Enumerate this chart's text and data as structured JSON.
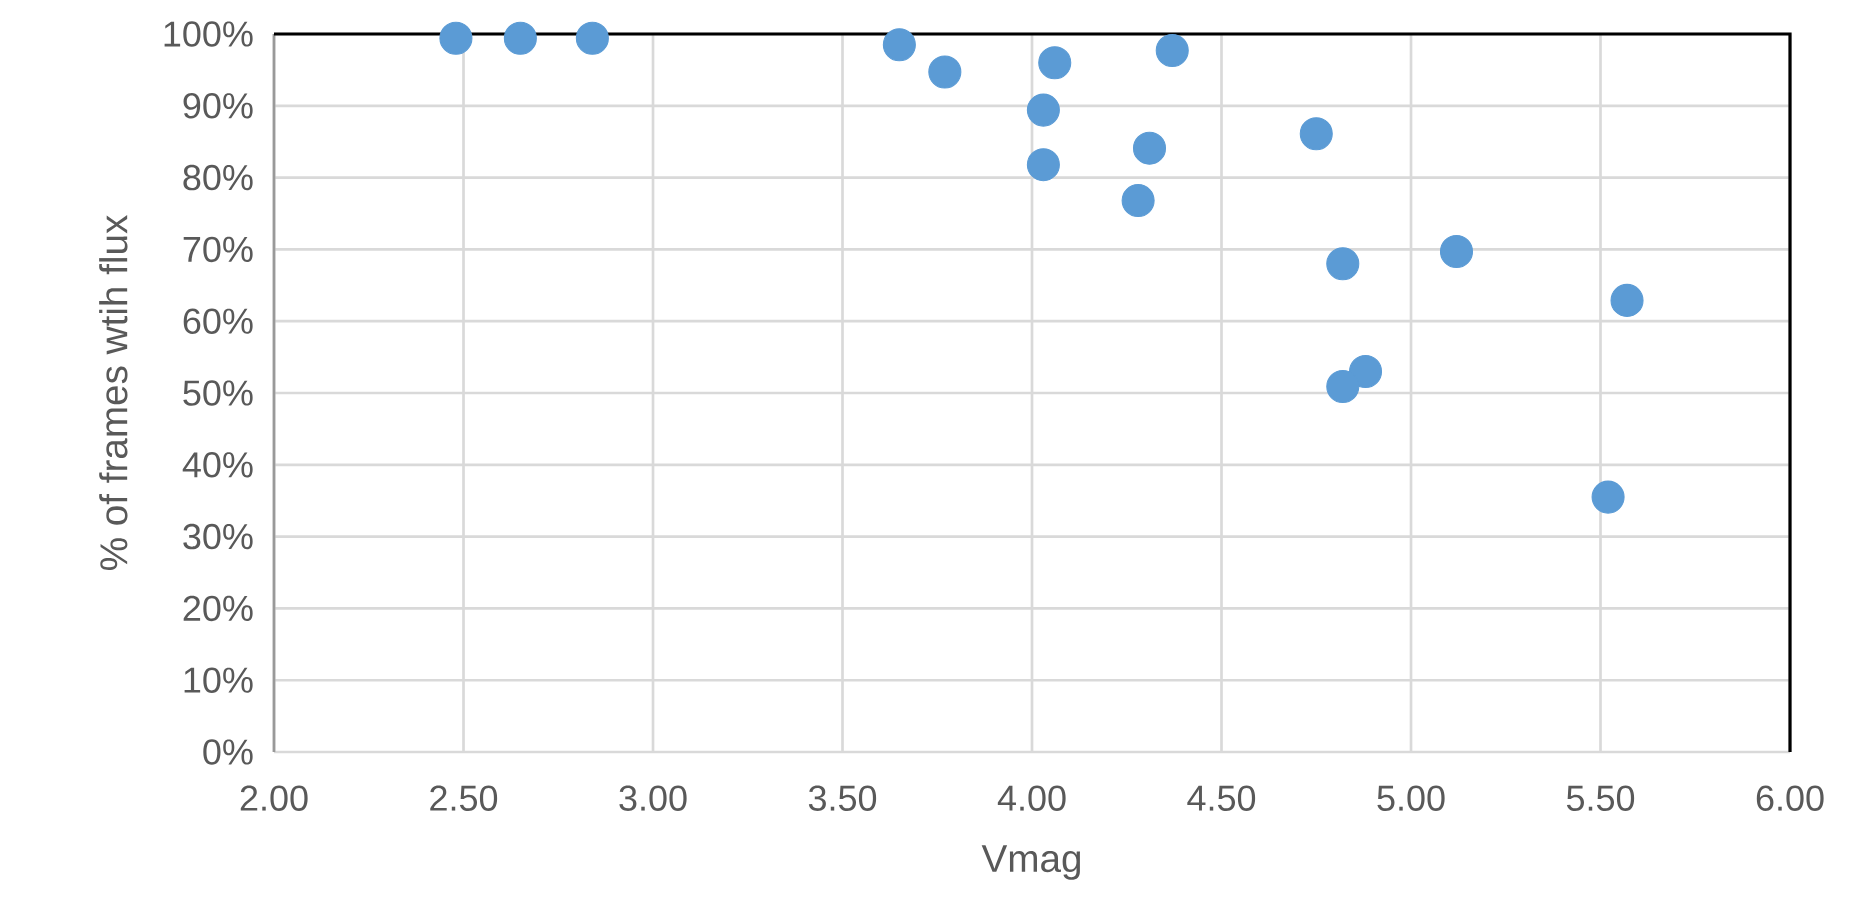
{
  "chart_data": {
    "type": "scatter",
    "xlabel": "Vmag",
    "ylabel": "% of frames wtih flux",
    "x": [
      2.48,
      2.65,
      2.84,
      3.65,
      3.77,
      4.06,
      4.37,
      4.03,
      4.31,
      4.03,
      4.28,
      4.75,
      4.82,
      5.12,
      5.57,
      4.88,
      4.82,
      5.52
    ],
    "values": [
      99.4,
      99.4,
      99.4,
      98.5,
      94.7,
      96.0,
      97.7,
      89.4,
      84.1,
      81.8,
      76.8,
      86.1,
      68.0,
      69.7,
      62.9,
      53.0,
      50.9,
      35.5
    ],
    "color": "#5b9bd5",
    "marker": "circle",
    "grid": true,
    "xlim": [
      2.0,
      6.0
    ],
    "xticks": [
      {
        "value": 2.0,
        "label": "2.00"
      },
      {
        "value": 2.5,
        "label": "2.50"
      },
      {
        "value": 3.0,
        "label": "3.00"
      },
      {
        "value": 3.5,
        "label": "3.50"
      },
      {
        "value": 4.0,
        "label": "4.00"
      },
      {
        "value": 4.5,
        "label": "4.50"
      },
      {
        "value": 5.0,
        "label": "5.00"
      },
      {
        "value": 5.5,
        "label": "5.50"
      },
      {
        "value": 6.0,
        "label": "6.00"
      }
    ],
    "ylim": [
      0,
      100
    ],
    "yticks": [
      {
        "value": 0,
        "label": "0%"
      },
      {
        "value": 10,
        "label": "10%"
      },
      {
        "value": 20,
        "label": "20%"
      },
      {
        "value": 30,
        "label": "30%"
      },
      {
        "value": 40,
        "label": "40%"
      },
      {
        "value": 50,
        "label": "50%"
      },
      {
        "value": 60,
        "label": "60%"
      },
      {
        "value": 70,
        "label": "70%"
      },
      {
        "value": 80,
        "label": "80%"
      },
      {
        "value": 90,
        "label": "90%"
      },
      {
        "value": 100,
        "label": "100%"
      }
    ]
  }
}
